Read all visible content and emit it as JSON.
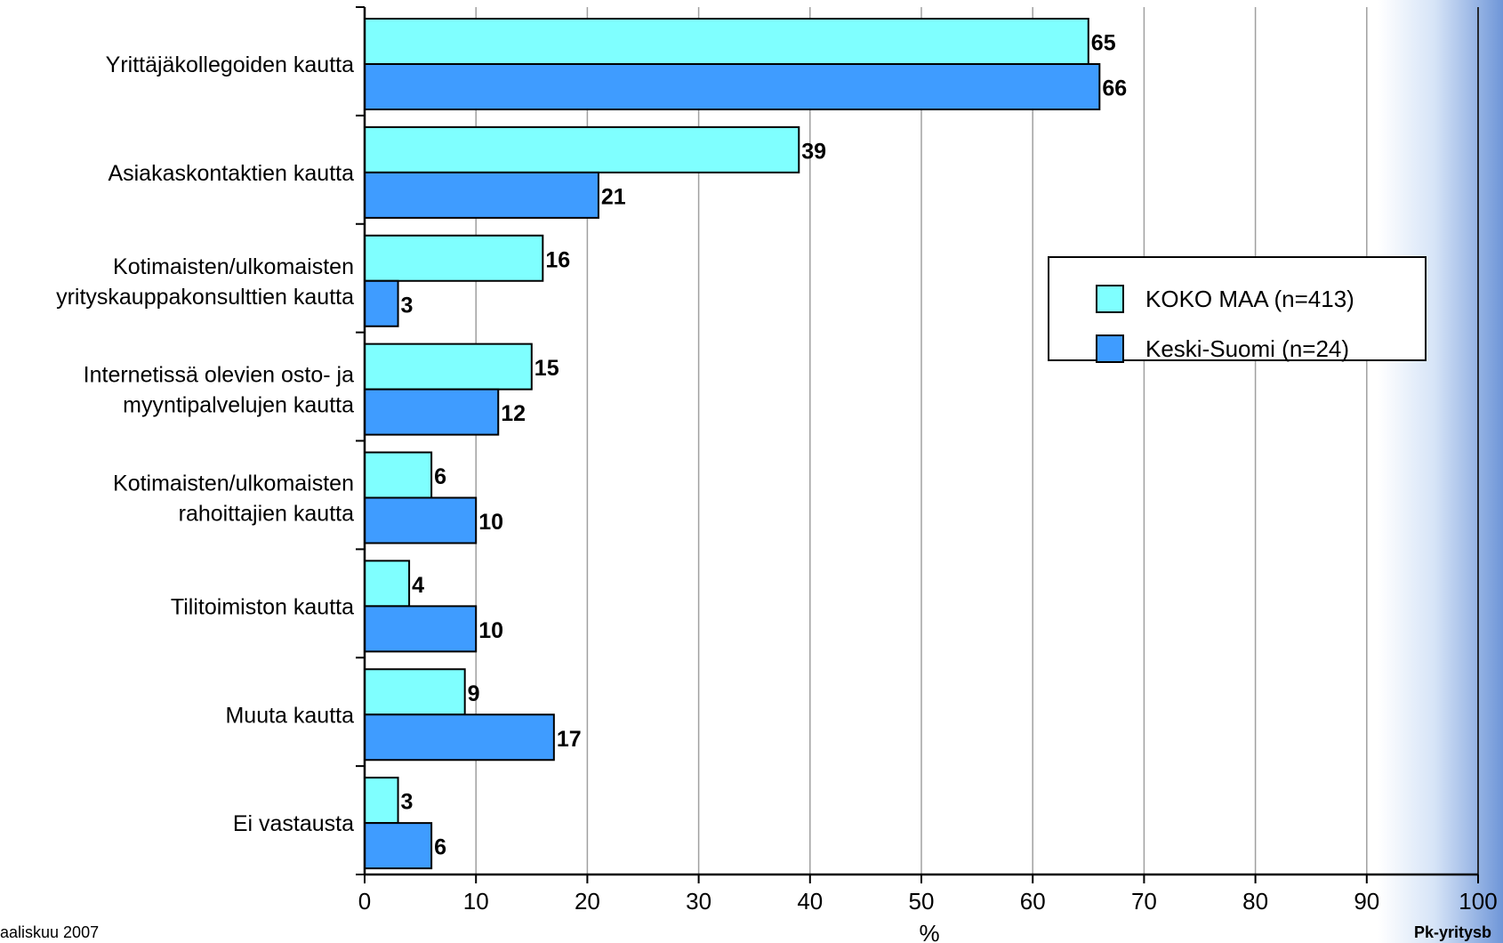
{
  "footer": {
    "left": "aaliskuu 2007",
    "right": "Pk-yritysb"
  },
  "chart_data": {
    "type": "bar",
    "orientation": "horizontal",
    "categories": [
      [
        "Yrittäjäkollegoiden kautta"
      ],
      [
        "Asiakaskontaktien kautta"
      ],
      [
        "Kotimaisten/ulkomaisten",
        "yrityskauppakonsulttien kautta"
      ],
      [
        "Internetissä olevien osto- ja",
        "myyntipalvelujen kautta"
      ],
      [
        "Kotimaisten/ulkomaisten",
        "rahoittajien kautta"
      ],
      [
        "Tilitoimiston kautta"
      ],
      [
        "Muuta kautta"
      ],
      [
        "Ei vastausta"
      ]
    ],
    "series": [
      {
        "name": "KOKO MAA (n=413)",
        "color": "#7fffff",
        "values": [
          65,
          39,
          16,
          15,
          6,
          4,
          9,
          3
        ]
      },
      {
        "name": "Keski-Suomi (n=24)",
        "color": "#3f9cff",
        "values": [
          66,
          21,
          3,
          12,
          10,
          10,
          17,
          6
        ]
      }
    ],
    "xlabel": "%",
    "xlim": [
      0,
      100
    ],
    "xticks": [
      0,
      10,
      20,
      30,
      40,
      50,
      60,
      70,
      80,
      90,
      100
    ],
    "grid": "vertical",
    "legend_position": "right",
    "title": ""
  }
}
